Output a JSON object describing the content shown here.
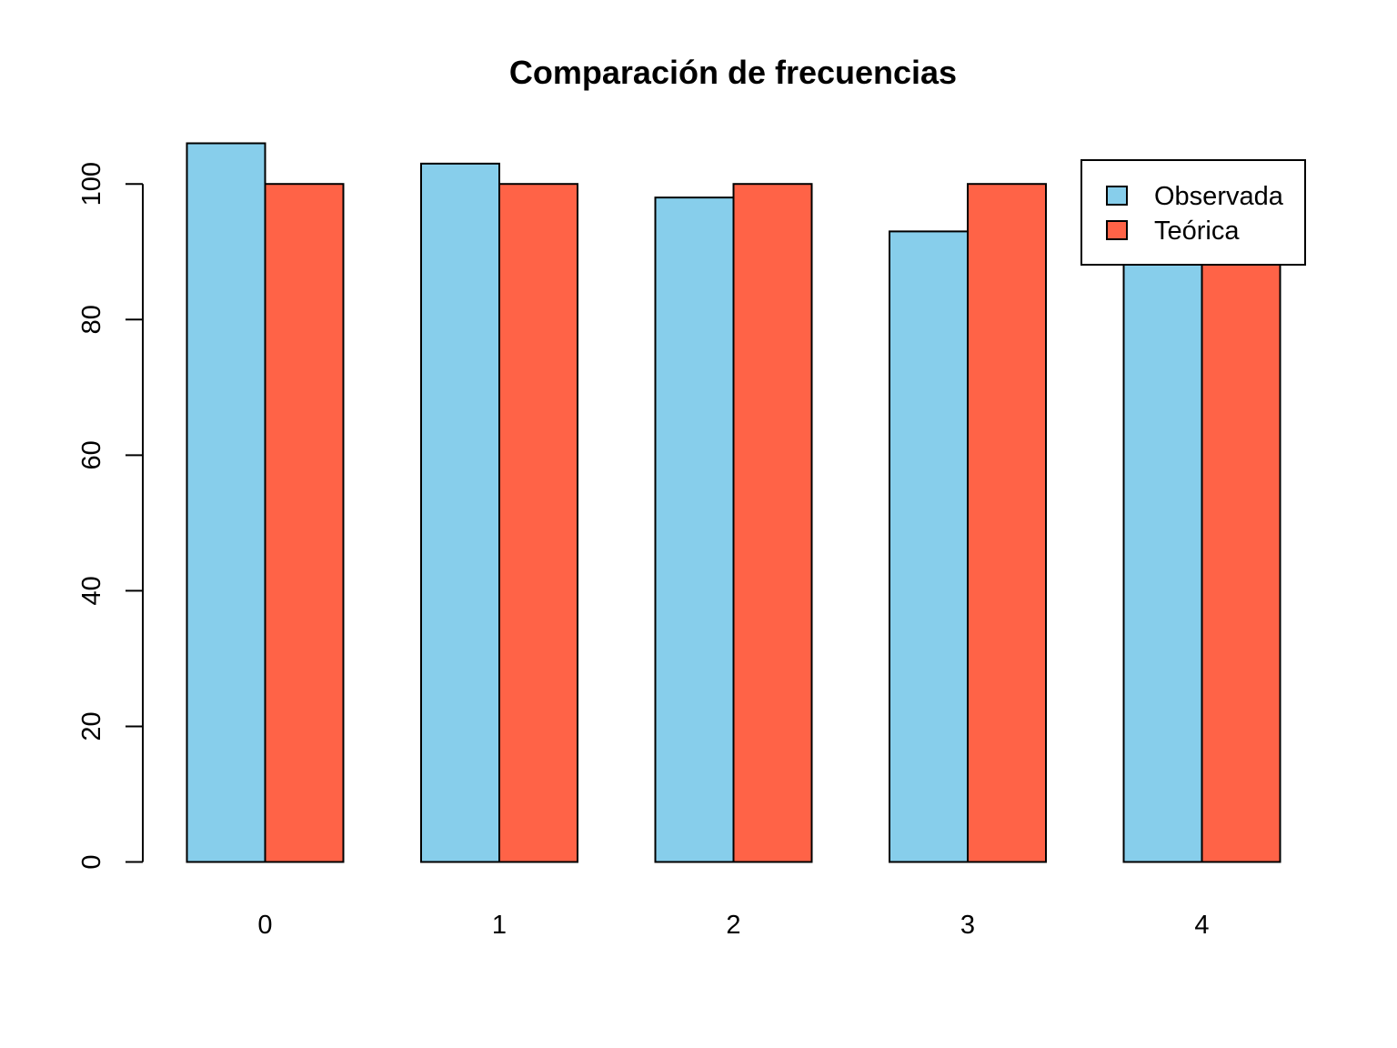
{
  "chart_data": {
    "type": "bar",
    "title": "Comparación de frecuencias",
    "xlabel": "",
    "ylabel": "",
    "categories": [
      "0",
      "1",
      "2",
      "3",
      "4"
    ],
    "series": [
      {
        "name": "Observada",
        "color": "#87CEEB",
        "values": [
          106,
          103,
          98,
          93,
          100
        ]
      },
      {
        "name": "Teórica",
        "color": "#FF6347",
        "values": [
          100,
          100,
          100,
          100,
          100
        ]
      }
    ],
    "ylim": [
      0,
      106
    ],
    "yticks": [
      0,
      20,
      40,
      60,
      80,
      100
    ],
    "grid": false,
    "legend_position": "top-right"
  }
}
